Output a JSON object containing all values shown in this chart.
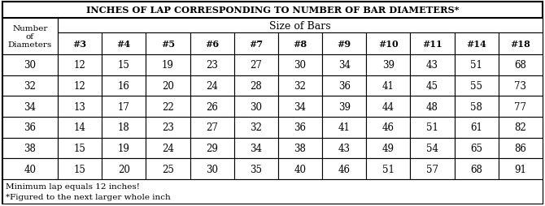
{
  "title": "INCHES OF LAP CORRESPONDING TO NUMBER OF BAR DIAMETERS*",
  "col_header_top": "Size of Bars",
  "bar_sizes": [
    "#3",
    "#4",
    "#5",
    "#6",
    "#7",
    "#8",
    "#9",
    "#10",
    "#11",
    "#14",
    "#18"
  ],
  "num_diameters": [
    30,
    32,
    34,
    36,
    38,
    40
  ],
  "table_data": [
    [
      12,
      15,
      19,
      23,
      27,
      30,
      34,
      39,
      43,
      51,
      68
    ],
    [
      12,
      16,
      20,
      24,
      28,
      32,
      36,
      41,
      45,
      55,
      73
    ],
    [
      13,
      17,
      22,
      26,
      30,
      34,
      39,
      44,
      48,
      58,
      77
    ],
    [
      14,
      18,
      23,
      27,
      32,
      36,
      41,
      46,
      51,
      61,
      82
    ],
    [
      15,
      19,
      24,
      29,
      34,
      38,
      43,
      49,
      54,
      65,
      86
    ],
    [
      15,
      20,
      25,
      30,
      35,
      40,
      46,
      51,
      57,
      68,
      91
    ]
  ],
  "footnote1": "Minimum lap equals 12 inches!",
  "footnote2": "*Figured to the next larger whole inch",
  "bg_color": "#ffffff"
}
